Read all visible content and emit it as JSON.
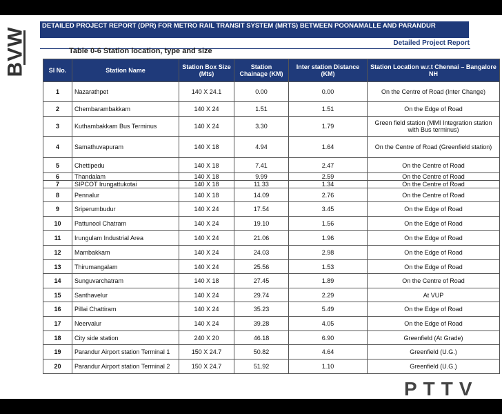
{
  "logo": "BVW",
  "header": {
    "title": "DETAILED PROJECT REPORT (DPR) FOR METRO RAIL TRANSIT SYSTEM (MRTS) BETWEEN POONAMALLE AND PARANDUR",
    "subtitle": "Detailed Project Report"
  },
  "table": {
    "caption": "Table 0-6 Station location, type and size",
    "columns": [
      "Sl No.",
      "Station Name",
      "Station Box Size (Mts)",
      "Station Chainage (KM)",
      "Inter station Distance (KM)",
      "Station Location w.r.t Chennai – Bangalore NH"
    ],
    "rows": [
      [
        "1",
        "Nazarathpet",
        "140 X 24.1",
        "0.00",
        "0.00",
        "On the Centre of Road (Inter Change)"
      ],
      [
        "2",
        "Chembarambakkam",
        "140 X 24",
        "1.51",
        "1.51",
        "On the Edge of Road"
      ],
      [
        "3",
        "Kuthambakkam Bus Terminus",
        "140 X 24",
        "3.30",
        "1.79",
        "Green field station (MMI Integration station with Bus terminus)"
      ],
      [
        "4",
        "Samathuvapuram",
        "140 X 18",
        "4.94",
        "1.64",
        "On the Centre of Road (Greenfield station)"
      ],
      [
        "5",
        "Chettipedu",
        "140 X 18",
        "7.41",
        "2.47",
        "On the Centre of Road"
      ],
      [
        "6",
        "Thandalam",
        "140 X 18",
        "9.99",
        "2.59",
        "On the Centre of Road"
      ],
      [
        "7",
        "SIPCOT Irungattukotai",
        "140 X 18",
        "11.33",
        "1.34",
        "On the Centre of Road"
      ],
      [
        "8",
        "Pennalur",
        "140 X 18",
        "14.09",
        "2.76",
        "On the Centre of Road"
      ],
      [
        "9",
        "Sriperumbudur",
        "140 X 24",
        "17.54",
        "3.45",
        "On the Edge of Road"
      ],
      [
        "10",
        "Pattunool Chatram",
        "140 X 24",
        "19.10",
        "1.56",
        "On the Edge of Road"
      ],
      [
        "11",
        "Irungulam Industrial Area",
        "140 X 24",
        "21.06",
        "1.96",
        "On the Edge of Road"
      ],
      [
        "12",
        "Mambakkam",
        "140 X 24",
        "24.03",
        "2.98",
        "On the Edge of Road"
      ],
      [
        "13",
        "Thirumangalam",
        "140 X 24",
        "25.56",
        "1.53",
        "On the Edge of Road"
      ],
      [
        "14",
        "Sunguvarchatram",
        "140 X 18",
        "27.45",
        "1.89",
        "On the Centre of Road"
      ],
      [
        "15",
        "Santhavelur",
        "140 X 24",
        "29.74",
        "2.29",
        "At VUP"
      ],
      [
        "16",
        "Pillai Chattiram",
        "140 X 24",
        "35.23",
        "5.49",
        "On the Edge of Road"
      ],
      [
        "17",
        "Neervalur",
        "140 X 24",
        "39.28",
        "4.05",
        "On the Edge of Road"
      ],
      [
        "18",
        "City side station",
        "240 X 20",
        "46.18",
        "6.90",
        "Greenfield (At Grade)"
      ],
      [
        "19",
        "Parandur Airport station Terminal 1",
        "150 X 24.7",
        "50.82",
        "4.64",
        "Greenfield (U.G.)"
      ],
      [
        "20",
        "Parandur Airport station Terminal 2",
        "150 X 24.7",
        "51.92",
        "1.10",
        "Greenfield (U.G.)"
      ]
    ]
  },
  "watermark": "PTTV"
}
